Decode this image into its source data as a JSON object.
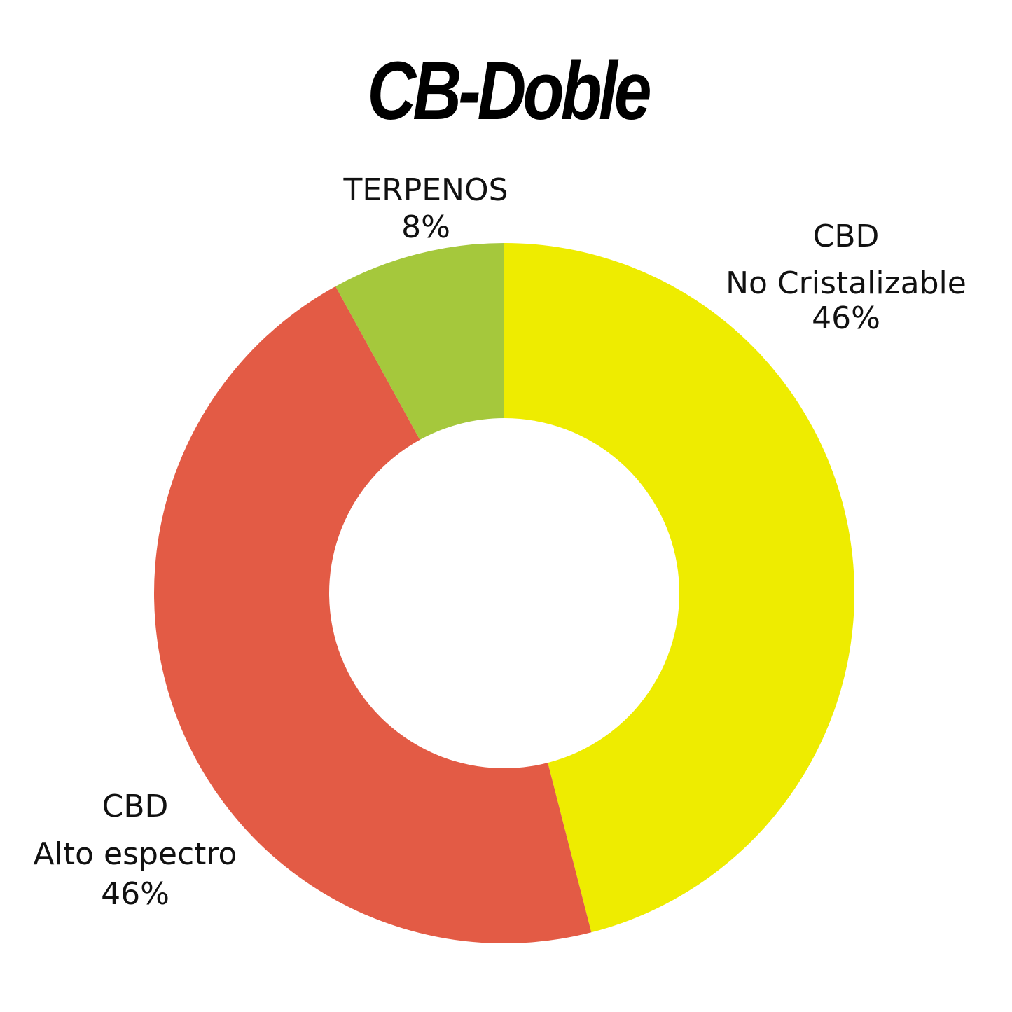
{
  "chart_data": {
    "type": "donut",
    "title": "CB-Doble",
    "categories": [
      "CBD\nNo Cristalizable",
      "CBD\nAlto espectro",
      "TERPENOS"
    ],
    "values": [
      46,
      46,
      8
    ],
    "value_labels": [
      "46%",
      "46%",
      "8%"
    ],
    "colors": [
      "#eeec00",
      "#e35b45",
      "#a5c83c"
    ]
  }
}
